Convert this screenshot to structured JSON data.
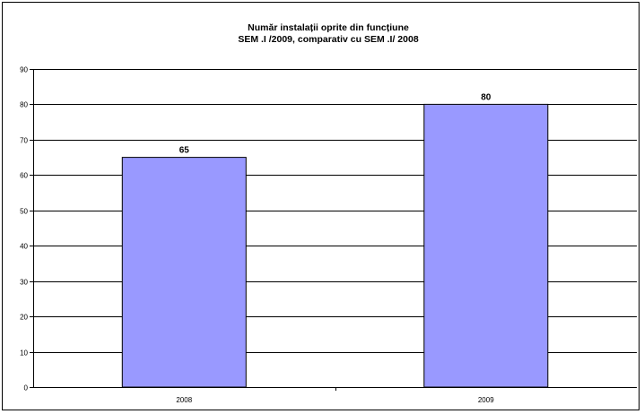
{
  "chart_data": {
    "type": "bar",
    "title_lines": [
      "Număr instalații oprite din funcțiune",
      "SEM .I /2009, comparativ cu SEM .I/ 2008"
    ],
    "categories": [
      "2008",
      "2009"
    ],
    "values": [
      65,
      80
    ],
    "data_labels": [
      "65",
      "80"
    ],
    "y_ticks": [
      "0",
      "10",
      "20",
      "30",
      "40",
      "50",
      "60",
      "70",
      "80",
      "90"
    ],
    "ylim": [
      0,
      90
    ],
    "y_step": 10,
    "grid": true,
    "legend": "none",
    "bar_color": "#9999ff",
    "bar_border_color": "#000000",
    "gridline_color": "#000000"
  }
}
